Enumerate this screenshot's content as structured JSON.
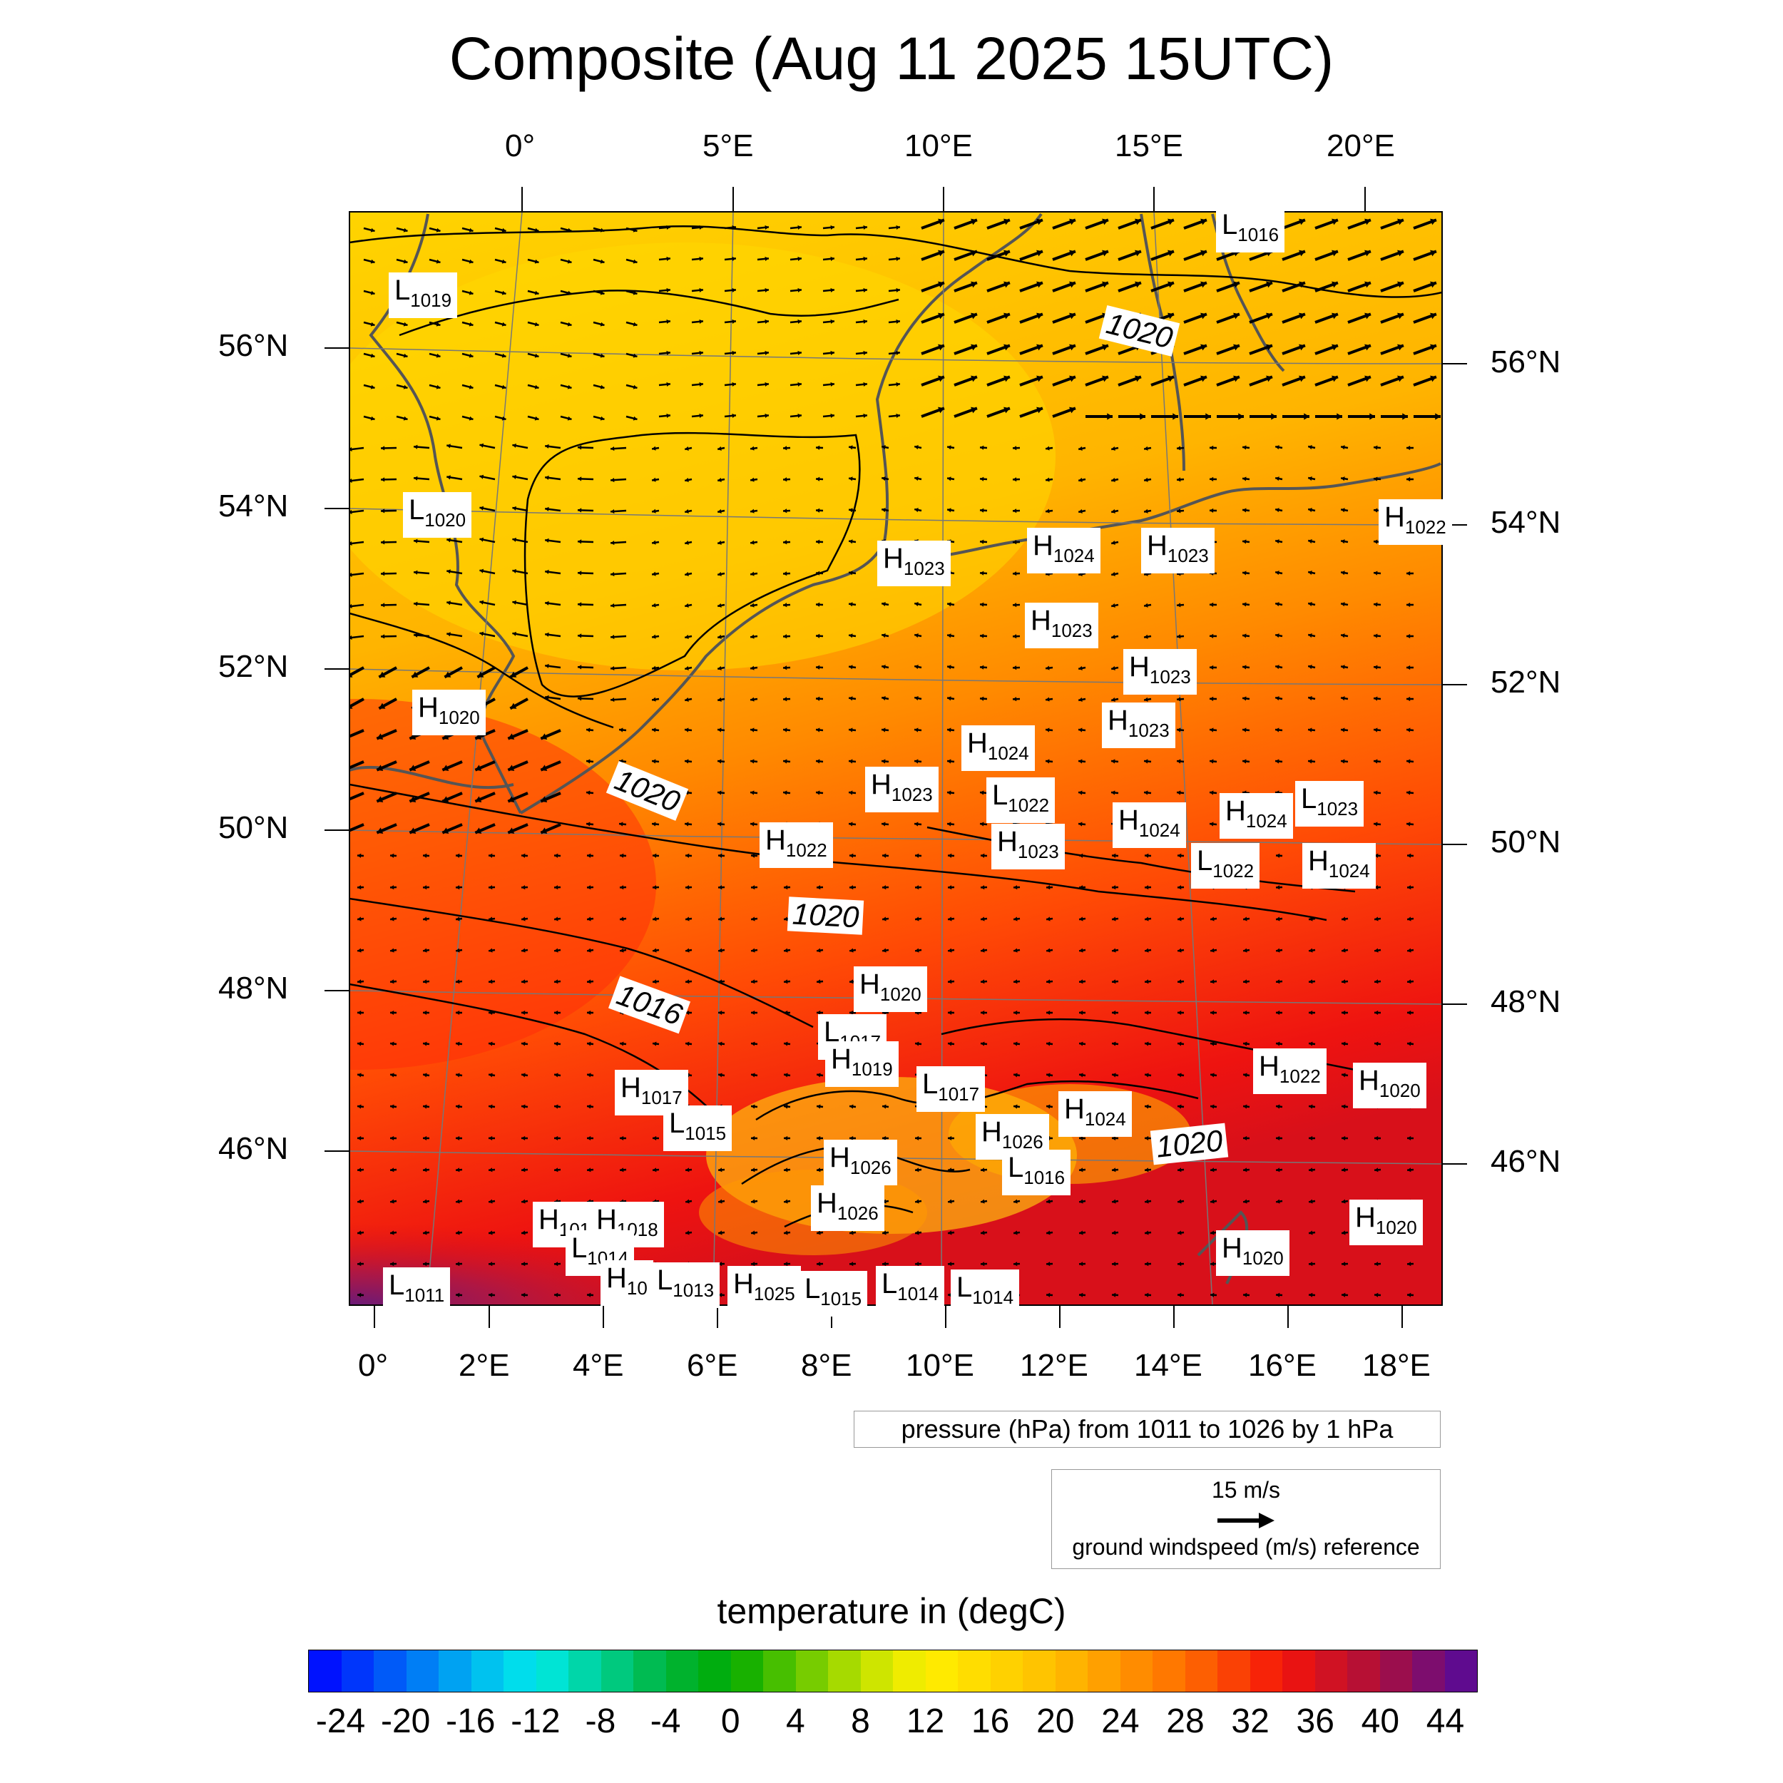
{
  "title": "Composite (Aug 11 2025 15UTC)",
  "top_lon_labels": [
    "0°",
    "5°E",
    "10°E",
    "15°E",
    "20°E"
  ],
  "bottom_lon_labels": [
    "0°",
    "2°E",
    "4°E",
    "6°E",
    "8°E",
    "10°E",
    "12°E",
    "14°E",
    "16°E",
    "18°E"
  ],
  "left_lat_labels": [
    "56°N",
    "54°N",
    "52°N",
    "50°N",
    "48°N",
    "46°N"
  ],
  "right_lat_labels": [
    "56°N",
    "54°N",
    "52°N",
    "50°N",
    "48°N",
    "46°N"
  ],
  "pressure_centers": [
    {
      "t": "L",
      "v": "1016"
    },
    {
      "t": "L",
      "v": "1019"
    },
    {
      "t": "L",
      "v": "1020"
    },
    {
      "t": "H",
      "v": "1023"
    },
    {
      "t": "H",
      "v": "1024"
    },
    {
      "t": "H",
      "v": "1023"
    },
    {
      "t": "H",
      "v": "1022"
    },
    {
      "t": "H",
      "v": "1023"
    },
    {
      "t": "H",
      "v": "1023"
    },
    {
      "t": "H",
      "v": "1023"
    },
    {
      "t": "H",
      "v": "1020"
    },
    {
      "t": "H",
      "v": "1024"
    },
    {
      "t": "H",
      "v": "1023"
    },
    {
      "t": "L",
      "v": "1022"
    },
    {
      "t": "L",
      "v": "1023"
    },
    {
      "t": "H",
      "v": "1024"
    },
    {
      "t": "H",
      "v": "1024"
    },
    {
      "t": "H",
      "v": "1022"
    },
    {
      "t": "H",
      "v": "1023"
    },
    {
      "t": "L",
      "v": "1022"
    },
    {
      "t": "H",
      "v": "1024"
    },
    {
      "t": "H",
      "v": "1020"
    },
    {
      "t": "L",
      "v": "1017"
    },
    {
      "t": "H",
      "v": "1019"
    },
    {
      "t": "L",
      "v": "1017"
    },
    {
      "t": "H",
      "v": "1017"
    },
    {
      "t": "L",
      "v": "1015"
    },
    {
      "t": "H",
      "v": "1022"
    },
    {
      "t": "H",
      "v": "1020"
    },
    {
      "t": "H",
      "v": "1024"
    },
    {
      "t": "H",
      "v": "1026"
    },
    {
      "t": "H",
      "v": "1026"
    },
    {
      "t": "L",
      "v": "1016"
    },
    {
      "t": "H",
      "v": "1026"
    },
    {
      "t": "H",
      "v": "101"
    },
    {
      "t": "H",
      "v": "1018"
    },
    {
      "t": "L",
      "v": "1014"
    },
    {
      "t": "H",
      "v": "10"
    },
    {
      "t": "L",
      "v": "1013"
    },
    {
      "t": "H",
      "v": "1025"
    },
    {
      "t": "L",
      "v": "1015"
    },
    {
      "t": "L",
      "v": "1014"
    },
    {
      "t": "L",
      "v": "1014"
    },
    {
      "t": "L",
      "v": "1011"
    },
    {
      "t": "H",
      "v": "1020"
    },
    {
      "t": "H",
      "v": "1020"
    }
  ],
  "isobar_labels": [
    "1020",
    "1020",
    "1020",
    "1016",
    "1020"
  ],
  "pressure_info": "pressure (hPa) from 1011 to 1026 by 1 hPa",
  "wind_reference": {
    "value": "15 m/s",
    "label": "ground windspeed (m/s) reference"
  },
  "colorbar": {
    "title": "temperature in (degC)",
    "ticks": [
      "-24",
      "-20",
      "-16",
      "-12",
      "-8",
      "-4",
      "0",
      "4",
      "8",
      "12",
      "16",
      "20",
      "24",
      "28",
      "32",
      "36",
      "40",
      "44"
    ],
    "range": [
      -26,
      46
    ],
    "step": 2
  },
  "colors": {
    "field_cool": "#ffd400",
    "field_warm": "#ff6a00",
    "field_hot": "#f0130f",
    "field_extreme": "#7a1a6e",
    "coastline": "#555555",
    "isobar": "#000000"
  }
}
